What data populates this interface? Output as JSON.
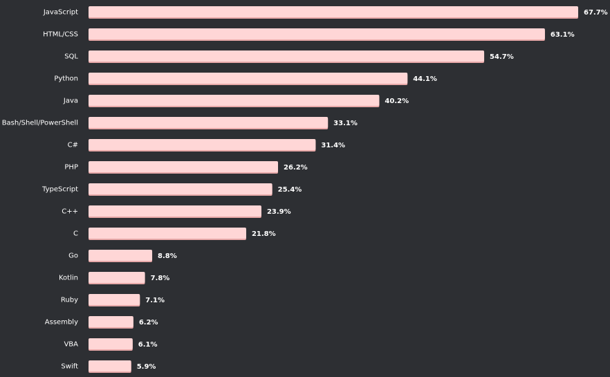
{
  "chart_data": {
    "type": "bar",
    "orientation": "horizontal",
    "categories": [
      "JavaScript",
      "HTML/CSS",
      "SQL",
      "Python",
      "Java",
      "Bash/Shell/PowerShell",
      "C#",
      "PHP",
      "TypeScript",
      "C++",
      "C",
      "Go",
      "Kotlin",
      "Ruby",
      "Assembly",
      "VBA",
      "Swift"
    ],
    "values": [
      67.7,
      63.1,
      54.7,
      44.1,
      40.2,
      33.1,
      31.4,
      26.2,
      25.4,
      23.9,
      21.8,
      8.8,
      7.8,
      7.1,
      6.2,
      6.1,
      5.9
    ],
    "value_labels": [
      "67.7%",
      "63.1%",
      "54.7%",
      "44.1%",
      "40.2%",
      "33.1%",
      "31.4%",
      "26.2%",
      "25.4%",
      "23.9%",
      "21.8%",
      "8.8%",
      "7.8%",
      "7.1%",
      "6.2%",
      "6.1%",
      "5.9%"
    ],
    "unit": "%",
    "xlim": [
      0,
      67.7
    ],
    "grid": false,
    "bar_color": "#ffd6d6",
    "bar_shadow_color": "#e8a9a9",
    "background_color": "#2d2f33",
    "label_color": "#ffffff"
  }
}
